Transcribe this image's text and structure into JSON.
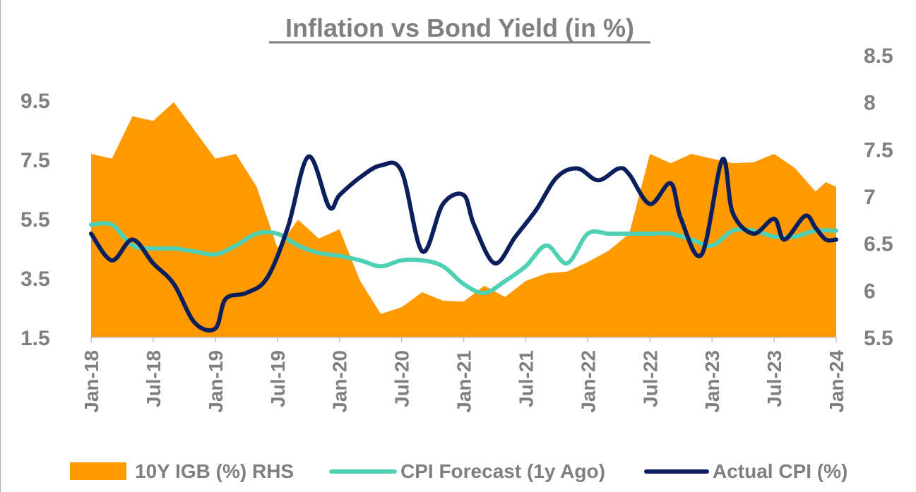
{
  "chart_data": {
    "type": "line",
    "title": "Inflation vs Bond Yield (in %)",
    "xlabel": "",
    "ylabel": "",
    "x_labels": [
      "Jan-18",
      "Jul-18",
      "Jan-19",
      "Jul-19",
      "Jan-20",
      "Jul-20",
      "Jan-21",
      "Jul-21",
      "Jan-22",
      "Jul-22",
      "Jan-23",
      "Jul-23",
      "Jan-24"
    ],
    "y_left_ticks": [
      "9.5",
      "7.5",
      "5.5",
      "3.5",
      "1.5"
    ],
    "y_right_ticks": [
      "8.5",
      "8",
      "7.5",
      "7",
      "6.5",
      "6",
      "5.5"
    ],
    "ylim_left": [
      1.5,
      9.5
    ],
    "ylim_right": [
      5.5,
      8.5
    ],
    "grid": false,
    "legend_position": "bottom",
    "colors": {
      "area": "#ff9900",
      "forecast": "#4dd0b4",
      "actual": "#0b1f5c"
    },
    "series": [
      {
        "name": "10Y IGB (%) RHS",
        "axis": "right",
        "chart_type": "area",
        "x": [
          0,
          2,
          4,
          6,
          8,
          10,
          12,
          14,
          16,
          18,
          20,
          22,
          24,
          26,
          28,
          30,
          32,
          34,
          36,
          38,
          40,
          42,
          44,
          46,
          48,
          50,
          52,
          54,
          56,
          58,
          60,
          62,
          64,
          66,
          68,
          70,
          71,
          72
        ],
        "values": [
          7.45,
          7.4,
          7.85,
          7.8,
          8.0,
          7.7,
          7.4,
          7.45,
          7.1,
          6.45,
          6.75,
          6.55,
          6.65,
          6.1,
          5.75,
          5.82,
          5.98,
          5.89,
          5.88,
          6.05,
          5.93,
          6.1,
          6.18,
          6.2,
          6.3,
          6.42,
          6.6,
          7.45,
          7.35,
          7.45,
          7.4,
          7.35,
          7.36,
          7.45,
          7.3,
          7.05,
          7.15,
          7.1
        ]
      },
      {
        "name": "CPI Forecast (1y Ago)",
        "axis": "left",
        "chart_type": "line",
        "x": [
          0,
          2,
          4,
          6,
          8,
          10,
          12,
          14,
          16,
          18,
          20,
          22,
          24,
          26,
          28,
          30,
          32,
          34,
          36,
          38,
          40,
          42,
          44,
          46,
          48,
          50,
          52,
          54,
          56,
          58,
          60,
          62,
          64,
          66,
          68,
          70,
          72
        ],
        "values": [
          5.3,
          5.3,
          4.6,
          4.5,
          4.5,
          4.4,
          4.3,
          4.6,
          5.0,
          5.0,
          4.6,
          4.35,
          4.25,
          4.1,
          3.9,
          4.1,
          4.1,
          3.9,
          3.3,
          3.0,
          3.4,
          3.9,
          4.6,
          4.0,
          5.0,
          5.0,
          5.0,
          5.0,
          5.0,
          4.8,
          4.6,
          5.1,
          5.1,
          4.9,
          4.9,
          5.1,
          5.1
        ]
      },
      {
        "name": "Actual CPI (%)",
        "axis": "left",
        "chart_type": "line",
        "x": [
          0,
          2,
          4,
          6,
          8,
          10,
          12,
          13,
          15,
          17,
          19,
          21,
          23,
          24,
          26,
          28,
          30,
          32,
          34,
          36,
          37,
          39,
          41,
          43,
          45,
          47,
          49,
          51,
          52,
          54,
          56,
          57,
          59,
          61,
          62,
          64,
          66,
          67,
          69,
          70,
          71,
          72
        ],
        "values": [
          5.0,
          4.1,
          4.8,
          4.0,
          3.3,
          2.0,
          1.8,
          2.8,
          3.0,
          3.5,
          5.2,
          7.6,
          5.9,
          6.3,
          6.9,
          7.3,
          7.1,
          4.4,
          6.0,
          6.3,
          5.3,
          4.0,
          4.9,
          5.8,
          6.9,
          7.2,
          6.8,
          7.2,
          7.0,
          6.0,
          6.7,
          5.5,
          4.3,
          7.5,
          5.7,
          5.0,
          5.5,
          4.8,
          5.6,
          5.2,
          4.8,
          4.8
        ]
      }
    ]
  }
}
